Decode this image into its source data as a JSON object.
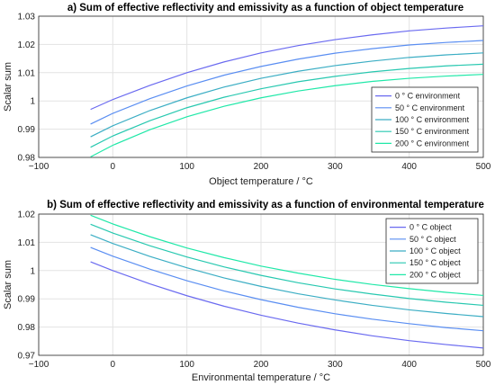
{
  "chart_data": [
    {
      "type": "line",
      "title": "a) Sum of effective reflectivity and emissivity as a function of object temperature",
      "xlabel": "Object temperature / °C",
      "ylabel": "Scalar sum",
      "xlim": [
        -100,
        500
      ],
      "ylim": [
        0.98,
        1.03
      ],
      "xticks": [
        "−100",
        "0",
        "100",
        "200",
        "300",
        "400",
        "500"
      ],
      "yticks": [
        "0.98",
        "0.99",
        "1",
        "1.01",
        "1.02",
        "1.03"
      ],
      "grid": true,
      "legend_position": "lower-right",
      "x": [
        -30,
        0,
        50,
        100,
        150,
        200,
        250,
        300,
        350,
        400,
        450,
        500
      ],
      "series": [
        {
          "name": "0 ° C environment",
          "color": "#6a6af0",
          "values": [
            0.997,
            1.0005,
            1.0055,
            1.01,
            1.0138,
            1.017,
            1.0196,
            1.0217,
            1.0234,
            1.0248,
            1.0258,
            1.0266
          ]
        },
        {
          "name": "50 ° C environment",
          "color": "#5a8ef2",
          "values": [
            0.9918,
            0.9956,
            1.0008,
            1.0053,
            1.0091,
            1.0122,
            1.0148,
            1.0169,
            1.0185,
            1.0198,
            1.0207,
            1.0214
          ]
        },
        {
          "name": "100 ° C environment",
          "color": "#3caec4",
          "values": [
            0.9873,
            0.9912,
            0.9966,
            1.0011,
            1.0049,
            1.008,
            1.0105,
            1.0125,
            1.0141,
            1.0154,
            1.0163,
            1.017
          ]
        },
        {
          "name": "150 ° C environment",
          "color": "#28c8b0",
          "values": [
            0.9836,
            0.9876,
            0.993,
            0.9976,
            1.0013,
            1.0043,
            1.0068,
            1.0087,
            1.0103,
            1.0115,
            1.0124,
            1.013
          ]
        },
        {
          "name": "200 ° C environment",
          "color": "#20e8a8",
          "values": [
            0.9802,
            0.9843,
            0.9898,
            0.9944,
            0.9981,
            1.0011,
            1.0035,
            1.0054,
            1.0069,
            1.008,
            1.0088,
            1.0094
          ]
        }
      ]
    },
    {
      "type": "line",
      "title": "b) Sum of effective reflectivity and emissivity as a function of environmental temperature",
      "xlabel": "Environmental temperature / °C",
      "ylabel": "Scalar sum",
      "xlim": [
        -100,
        500
      ],
      "ylim": [
        0.97,
        1.02
      ],
      "xticks": [
        "−100",
        "0",
        "100",
        "200",
        "300",
        "400",
        "500"
      ],
      "yticks": [
        "0.97",
        "0.98",
        "0.99",
        "1",
        "1.01",
        "1.02"
      ],
      "grid": true,
      "legend_position": "top-right",
      "x": [
        -30,
        0,
        50,
        100,
        150,
        200,
        250,
        300,
        350,
        400,
        450,
        500
      ],
      "series": [
        {
          "name": "0 ° C object",
          "color": "#6a6af0",
          "values": [
            1.0031,
            1.0,
            0.9953,
            0.9911,
            0.9874,
            0.9842,
            0.9814,
            0.979,
            0.9769,
            0.9752,
            0.9738,
            0.9726
          ]
        },
        {
          "name": "50 ° C object",
          "color": "#5a8ef2",
          "values": [
            1.0082,
            1.0051,
            1.0005,
            0.9964,
            0.9928,
            0.9897,
            0.987,
            0.9847,
            0.9828,
            0.9812,
            0.9798,
            0.9787
          ]
        },
        {
          "name": "100 ° C object",
          "color": "#3caec4",
          "values": [
            1.0127,
            1.0096,
            1.005,
            1.001,
            0.9974,
            0.9944,
            0.9918,
            0.9896,
            0.9877,
            0.9861,
            0.9848,
            0.9837
          ]
        },
        {
          "name": "150 ° C object",
          "color": "#28c8b0",
          "values": [
            1.0164,
            1.0133,
            1.0088,
            1.0048,
            1.0013,
            0.9983,
            0.9957,
            0.9935,
            0.9917,
            0.9901,
            0.9888,
            0.9877
          ]
        },
        {
          "name": "200 ° C object",
          "color": "#20e8a8",
          "values": [
            1.0196,
            1.0165,
            1.012,
            1.008,
            1.0046,
            1.0016,
            0.9991,
            0.9969,
            0.9951,
            0.9936,
            0.9923,
            0.9912
          ]
        }
      ]
    }
  ]
}
